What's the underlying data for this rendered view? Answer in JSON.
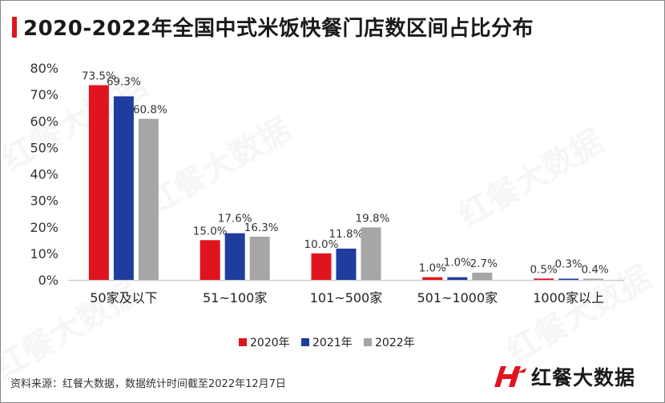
{
  "title": "2020-2022年全国中式米饭快餐门店数区间占比分布",
  "source": "资料来源：红餐大数据，数据统计时间截至2022年12月7日",
  "brand": {
    "name": "红餐大数据",
    "watermark": "红餐大数据",
    "color": "#e0141e"
  },
  "chart_data": {
    "type": "bar",
    "categories": [
      "50家及以下",
      "51~100家",
      "101~500家",
      "501~1000家",
      "1000家以上"
    ],
    "series": [
      {
        "name": "2020年",
        "color": "#e0141e",
        "values": [
          73.5,
          15.0,
          10.0,
          1.0,
          0.5
        ],
        "labels": [
          "73.5%",
          "15.0%",
          "10.0%",
          "1.0%",
          "0.5%"
        ]
      },
      {
        "name": "2021年",
        "color": "#1f3d9e",
        "values": [
          69.3,
          17.6,
          11.8,
          1.0,
          0.3
        ],
        "labels": [
          "69.3%",
          "17.6%",
          "11.8%",
          "1.0%",
          "0.3%"
        ]
      },
      {
        "name": "2022年",
        "color": "#a6a6a6",
        "values": [
          60.8,
          16.3,
          19.8,
          2.7,
          0.4
        ],
        "labels": [
          "60.8%",
          "16.3%",
          "19.8%",
          "2.7%",
          "0.4%"
        ]
      }
    ],
    "ylim": [
      0,
      80
    ],
    "yticks": [
      0,
      10,
      20,
      30,
      40,
      50,
      60,
      70,
      80
    ],
    "ytick_labels": [
      "0%",
      "10%",
      "20%",
      "30%",
      "40%",
      "50%",
      "60%",
      "70%",
      "80%"
    ],
    "grid": false,
    "legend": "bottom-center"
  }
}
